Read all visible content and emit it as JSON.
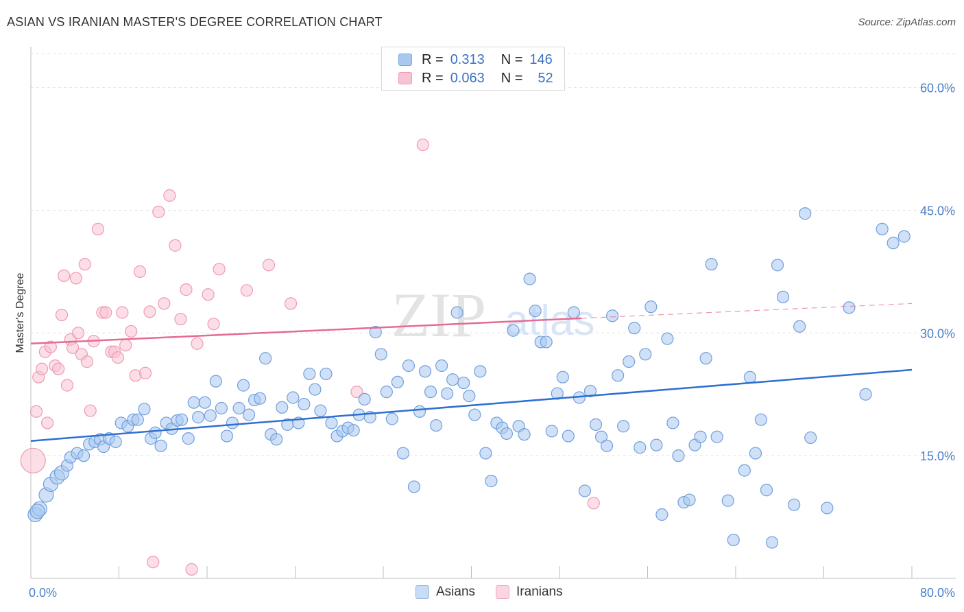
{
  "title": "ASIAN VS IRANIAN MASTER'S DEGREE CORRELATION CHART",
  "source": "Source: ZipAtlas.com",
  "watermark": {
    "zip": "ZIP",
    "atlas": "atlas"
  },
  "legend": {
    "rows": [
      {
        "r_label": "R =",
        "r_value": "0.313",
        "n_label": "N =",
        "n_value": "146",
        "color": "#a9c8f0",
        "border": "#7aa7e0"
      },
      {
        "r_label": "R =",
        "r_value": "0.063",
        "n_label": "N =",
        "n_value": "52",
        "color": "#f8c3d2",
        "border": "#ee9ab3"
      }
    ]
  },
  "bottom_legend": [
    {
      "label": "Asians",
      "color": "#c9dcf5",
      "border": "#8fb4e6"
    },
    {
      "label": "Iranians",
      "color": "#fbd6e1",
      "border": "#f0a6bd"
    }
  ],
  "chart_data": {
    "type": "scatter",
    "title": "ASIAN VS IRANIAN MASTER'S DEGREE CORRELATION CHART",
    "xlabel": "",
    "ylabel": "Master's Degree",
    "xlim": [
      0,
      80
    ],
    "ylim": [
      0,
      65
    ],
    "x_tick_labels": [
      "0.0%",
      "80.0%"
    ],
    "y_ticks": [
      15,
      30,
      45,
      60
    ],
    "y_tick_labels": [
      "15.0%",
      "30.0%",
      "45.0%",
      "60.0%"
    ],
    "grid": true,
    "series": [
      {
        "name": "Asians",
        "color": "#6f9fdd",
        "fill": "#a9c8f0",
        "trend": {
          "x0": 0,
          "y0": 16.8,
          "x1": 80,
          "y1": 25.5,
          "color": "#2f6fcf"
        },
        "points": [
          [
            0.4,
            7.8
          ],
          [
            0.8,
            8.5
          ],
          [
            1.4,
            10.2
          ],
          [
            1.8,
            11.5
          ],
          [
            2.4,
            12.4
          ],
          [
            2.8,
            12.9
          ],
          [
            3.3,
            13.8
          ],
          [
            3.6,
            14.8
          ],
          [
            4.2,
            15.3
          ],
          [
            4.8,
            15
          ],
          [
            5.3,
            16.4
          ],
          [
            5.8,
            16.7
          ],
          [
            6.3,
            17
          ],
          [
            6.6,
            16.1
          ],
          [
            7.1,
            17.1
          ],
          [
            7.7,
            16.7
          ],
          [
            8.2,
            19
          ],
          [
            8.8,
            18.6
          ],
          [
            9.3,
            19.4
          ],
          [
            9.7,
            19.4
          ],
          [
            10.3,
            20.7
          ],
          [
            10.9,
            17.1
          ],
          [
            11.3,
            17.8
          ],
          [
            11.8,
            16.2
          ],
          [
            12.3,
            19
          ],
          [
            12.8,
            18.3
          ],
          [
            13.3,
            19.3
          ],
          [
            13.7,
            19.4
          ],
          [
            14.3,
            17.1
          ],
          [
            14.8,
            21.5
          ],
          [
            15.2,
            19.7
          ],
          [
            15.8,
            21.5
          ],
          [
            16.3,
            19.9
          ],
          [
            16.8,
            24.1
          ],
          [
            17.3,
            20.8
          ],
          [
            17.8,
            17.4
          ],
          [
            18.3,
            19
          ],
          [
            18.9,
            20.8
          ],
          [
            19.3,
            23.6
          ],
          [
            19.8,
            20
          ],
          [
            20.3,
            21.8
          ],
          [
            20.8,
            22
          ],
          [
            21.3,
            26.9
          ],
          [
            21.8,
            17.6
          ],
          [
            22.3,
            17
          ],
          [
            22.8,
            20.9
          ],
          [
            23.3,
            18.8
          ],
          [
            23.8,
            22.1
          ],
          [
            24.3,
            19
          ],
          [
            24.8,
            21.3
          ],
          [
            25.3,
            25
          ],
          [
            25.8,
            23.1
          ],
          [
            26.3,
            20.5
          ],
          [
            26.8,
            25
          ],
          [
            27.3,
            19
          ],
          [
            27.8,
            17.4
          ],
          [
            28.3,
            18
          ],
          [
            28.8,
            18.4
          ],
          [
            29.3,
            18.1
          ],
          [
            29.8,
            20
          ],
          [
            30.3,
            21.9
          ],
          [
            30.8,
            19.7
          ],
          [
            31.3,
            30.1
          ],
          [
            31.8,
            27.4
          ],
          [
            32.3,
            22.8
          ],
          [
            32.8,
            19.5
          ],
          [
            33.3,
            24
          ],
          [
            33.8,
            15.3
          ],
          [
            34.3,
            26
          ],
          [
            34.8,
            11.2
          ],
          [
            35.3,
            20.4
          ],
          [
            35.8,
            25.3
          ],
          [
            36.3,
            22.8
          ],
          [
            36.8,
            18.7
          ],
          [
            37.3,
            26
          ],
          [
            37.8,
            22.6
          ],
          [
            38.3,
            24.3
          ],
          [
            38.7,
            32.5
          ],
          [
            39.3,
            23.9
          ],
          [
            39.8,
            22.3
          ],
          [
            40.3,
            20
          ],
          [
            40.8,
            25.3
          ],
          [
            41.3,
            15.3
          ],
          [
            41.8,
            11.9
          ],
          [
            42.3,
            19
          ],
          [
            42.8,
            18.4
          ],
          [
            43.2,
            17.7
          ],
          [
            43.8,
            30.3
          ],
          [
            44.3,
            18.6
          ],
          [
            44.8,
            17.6
          ],
          [
            45.3,
            36.6
          ],
          [
            45.8,
            32.7
          ],
          [
            46.3,
            28.9
          ],
          [
            46.8,
            28.9
          ],
          [
            47.3,
            18
          ],
          [
            47.8,
            22.6
          ],
          [
            48.3,
            24.6
          ],
          [
            48.8,
            17.4
          ],
          [
            49.3,
            32.5
          ],
          [
            49.8,
            22.1
          ],
          [
            50.3,
            10.7
          ],
          [
            50.8,
            22.9
          ],
          [
            51.3,
            18.8
          ],
          [
            51.8,
            17.3
          ],
          [
            52.3,
            16.2
          ],
          [
            52.8,
            32.1
          ],
          [
            53.3,
            24.8
          ],
          [
            53.8,
            18.6
          ],
          [
            54.3,
            26.5
          ],
          [
            54.8,
            30.6
          ],
          [
            55.3,
            16
          ],
          [
            55.8,
            27.4
          ],
          [
            56.3,
            33.2
          ],
          [
            56.8,
            16.3
          ],
          [
            57.3,
            7.8
          ],
          [
            57.8,
            29.3
          ],
          [
            58.3,
            19
          ],
          [
            58.8,
            15
          ],
          [
            59.3,
            9.3
          ],
          [
            59.8,
            9.6
          ],
          [
            60.3,
            16.3
          ],
          [
            60.8,
            17.3
          ],
          [
            61.3,
            26.9
          ],
          [
            61.8,
            38.4
          ],
          [
            62.3,
            17.3
          ],
          [
            63.3,
            9.5
          ],
          [
            63.8,
            4.7
          ],
          [
            64.8,
            13.2
          ],
          [
            65.3,
            24.6
          ],
          [
            65.8,
            15.3
          ],
          [
            66.3,
            19.4
          ],
          [
            66.8,
            10.8
          ],
          [
            67.3,
            4.4
          ],
          [
            67.8,
            38.3
          ],
          [
            68.3,
            34.4
          ],
          [
            69.3,
            9
          ],
          [
            69.8,
            30.8
          ],
          [
            70.3,
            44.6
          ],
          [
            70.8,
            17.2
          ],
          [
            72.3,
            8.6
          ],
          [
            74.3,
            33.1
          ],
          [
            75.8,
            22.5
          ],
          [
            77.3,
            42.7
          ],
          [
            78.3,
            41
          ],
          [
            79.3,
            41.8
          ],
          [
            0.6,
            8.2
          ]
        ]
      },
      {
        "name": "Iranians",
        "color": "#ee9ab3",
        "fill": "#f8c3d2",
        "trend": {
          "x0": 0,
          "y0": 28.7,
          "x1": 50,
          "y1": 31.8,
          "x2": 80,
          "y2": 33.6,
          "color": "#e56b93"
        },
        "points": [
          [
            0.2,
            14.4
          ],
          [
            0.5,
            20.4
          ],
          [
            0.7,
            24.6
          ],
          [
            1,
            25.6
          ],
          [
            1.3,
            27.7
          ],
          [
            1.5,
            19
          ],
          [
            1.8,
            28.3
          ],
          [
            2.2,
            26
          ],
          [
            2.5,
            25.6
          ],
          [
            2.8,
            32.2
          ],
          [
            3,
            37
          ],
          [
            3.3,
            23.6
          ],
          [
            3.6,
            29.2
          ],
          [
            3.8,
            28.2
          ],
          [
            4.1,
            36.7
          ],
          [
            4.3,
            30
          ],
          [
            4.6,
            27.4
          ],
          [
            4.9,
            38.4
          ],
          [
            5.1,
            26.5
          ],
          [
            5.4,
            20.5
          ],
          [
            5.7,
            29
          ],
          [
            6.1,
            42.7
          ],
          [
            6.5,
            32.5
          ],
          [
            6.8,
            32.5
          ],
          [
            7.3,
            27.7
          ],
          [
            7.6,
            27.7
          ],
          [
            7.9,
            27
          ],
          [
            8.3,
            32.5
          ],
          [
            8.6,
            28.5
          ],
          [
            9.1,
            30.2
          ],
          [
            9.5,
            24.8
          ],
          [
            9.9,
            37.5
          ],
          [
            10.4,
            25.1
          ],
          [
            10.8,
            32.6
          ],
          [
            11.1,
            2
          ],
          [
            11.6,
            44.8
          ],
          [
            12.1,
            33.6
          ],
          [
            12.6,
            46.8
          ],
          [
            13.1,
            40.7
          ],
          [
            13.6,
            31.7
          ],
          [
            14.1,
            35.3
          ],
          [
            14.6,
            1.1
          ],
          [
            15.1,
            28.7
          ],
          [
            16.1,
            34.7
          ],
          [
            16.6,
            31.1
          ],
          [
            17.1,
            37.8
          ],
          [
            19.6,
            35.2
          ],
          [
            21.6,
            38.3
          ],
          [
            23.6,
            33.6
          ],
          [
            29.6,
            22.8
          ],
          [
            35.6,
            53
          ],
          [
            51.1,
            9.2
          ]
        ]
      }
    ]
  }
}
